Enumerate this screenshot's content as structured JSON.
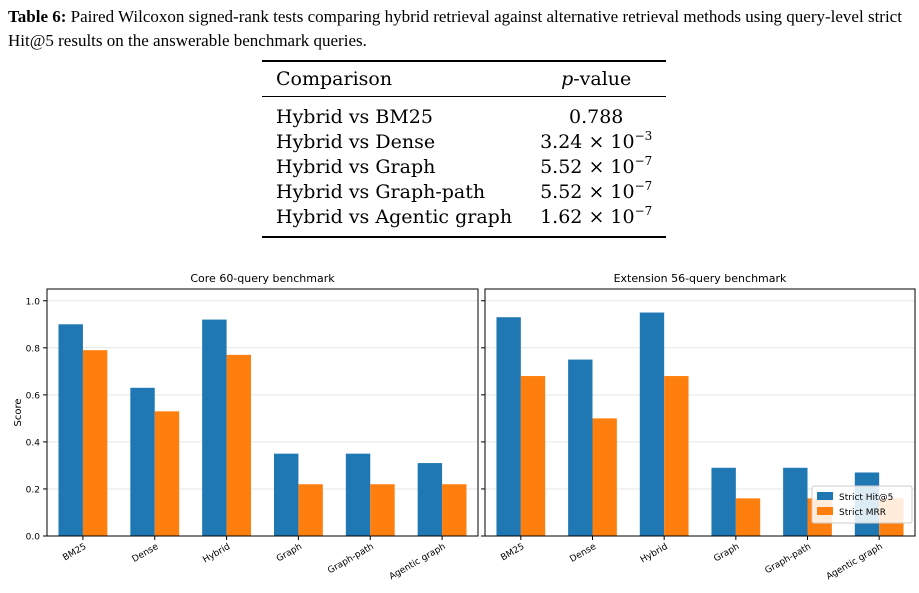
{
  "caption": {
    "label": "Table 6:",
    "text": "Paired Wilcoxon signed-rank tests comparing hybrid retrieval against alternative retrieval methods using query-level strict Hit@5 results on the answerable benchmark queries."
  },
  "table": {
    "col_comparison": "Comparison",
    "col_p_italic": "p",
    "col_p_rest": "-value",
    "rows": [
      {
        "comparison": "Hybrid vs BM25",
        "mantissa": "0.788",
        "exponent": ""
      },
      {
        "comparison": "Hybrid vs Dense",
        "mantissa": "3.24 × 10",
        "exponent": "−3"
      },
      {
        "comparison": "Hybrid vs Graph",
        "mantissa": "5.52 × 10",
        "exponent": "−7"
      },
      {
        "comparison": "Hybrid vs Graph-path",
        "mantissa": "5.52 × 10",
        "exponent": "−7"
      },
      {
        "comparison": "Hybrid vs Agentic graph",
        "mantissa": "1.62 × 10",
        "exponent": "−7"
      }
    ]
  },
  "chart_data": [
    {
      "type": "bar",
      "title": "Core 60-query benchmark",
      "xlabel": "",
      "ylabel": "Score",
      "ylim": [
        0,
        1.05
      ],
      "yticks": [
        "0.0",
        "0.2",
        "0.4",
        "0.6",
        "0.8",
        "1.0"
      ],
      "grid": true,
      "categories": [
        "BM25",
        "Dense",
        "Hybrid",
        "Graph",
        "Graph-path",
        "Agentic graph"
      ],
      "series": [
        {
          "name": "Strict Hit@5",
          "color": "#1f77b4",
          "values": [
            0.9,
            0.63,
            0.92,
            0.35,
            0.35,
            0.31
          ]
        },
        {
          "name": "Strict MRR",
          "color": "#ff7f0e",
          "values": [
            0.79,
            0.53,
            0.77,
            0.22,
            0.22,
            0.22
          ]
        }
      ]
    },
    {
      "type": "bar",
      "title": "Extension 56-query benchmark",
      "xlabel": "",
      "ylabel": "",
      "ylim": [
        0,
        1.05
      ],
      "grid": true,
      "legend": "lower-right",
      "categories": [
        "BM25",
        "Dense",
        "Hybrid",
        "Graph",
        "Graph-path",
        "Agentic graph"
      ],
      "series": [
        {
          "name": "Strict Hit@5",
          "color": "#1f77b4",
          "values": [
            0.93,
            0.75,
            0.95,
            0.29,
            0.29,
            0.27
          ]
        },
        {
          "name": "Strict MRR",
          "color": "#ff7f0e",
          "values": [
            0.68,
            0.5,
            0.68,
            0.16,
            0.16,
            0.16
          ]
        }
      ]
    }
  ]
}
